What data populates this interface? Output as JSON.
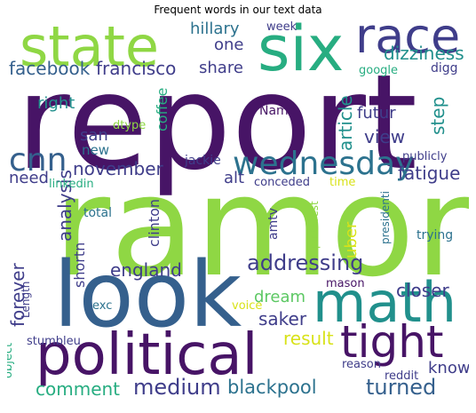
{
  "title": "Frequent words in our text data",
  "palette": {
    "dark_purple": "#471466",
    "indigo": "#3f3d8a",
    "blue": "#35608d",
    "teal_blue": "#2c728e",
    "teal": "#21908c",
    "green_teal": "#27ad81",
    "green": "#5cc863",
    "lime": "#8fd744",
    "yellow": "#d8e219"
  },
  "words": [
    {
      "id": "report",
      "text": "report",
      "color": "#471466"
    },
    {
      "id": "ramone",
      "text": "ramone",
      "color": "#8fd744"
    },
    {
      "id": "look",
      "text": "look",
      "color": "#35608d"
    },
    {
      "id": "political",
      "text": "political",
      "color": "#471466"
    },
    {
      "id": "state",
      "text": "state",
      "color": "#8fd744"
    },
    {
      "id": "six",
      "text": "six",
      "color": "#27ad81"
    },
    {
      "id": "race",
      "text": "race",
      "color": "#3f3d8a"
    },
    {
      "id": "math",
      "text": "math",
      "color": "#21908c"
    },
    {
      "id": "tight",
      "text": "tight",
      "color": "#471466"
    },
    {
      "id": "wednesday",
      "text": "wednesday",
      "color": "#2c728e"
    },
    {
      "id": "cnn",
      "text": "cnn",
      "color": "#35608d"
    },
    {
      "id": "addressing",
      "text": "addressing",
      "color": "#3f3d8a"
    },
    {
      "id": "medium",
      "text": "medium",
      "color": "#3f3d8a"
    },
    {
      "id": "blackpool",
      "text": "blackpool",
      "color": "#2c728e"
    },
    {
      "id": "turned",
      "text": "turned",
      "color": "#35608d"
    },
    {
      "id": "comment",
      "text": "comment",
      "color": "#27ad81"
    },
    {
      "id": "facebook",
      "text": "facebook",
      "color": "#35608d"
    },
    {
      "id": "francisco",
      "text": "francisco",
      "color": "#3f3d8a"
    },
    {
      "id": "november",
      "text": "november",
      "color": "#3f3d8a"
    },
    {
      "id": "england",
      "text": "england",
      "color": "#3f3d8a"
    },
    {
      "id": "analysis",
      "text": "analysis",
      "color": "#3f3d8a"
    },
    {
      "id": "forever",
      "text": "forever",
      "color": "#3f3d8a"
    },
    {
      "id": "saker",
      "text": "saker",
      "color": "#3f3d8a"
    },
    {
      "id": "closer",
      "text": "closer",
      "color": "#3f3d8a"
    },
    {
      "id": "result",
      "text": "result",
      "color": "#d8e219"
    },
    {
      "id": "dream",
      "text": "dream",
      "color": "#5cc863"
    },
    {
      "id": "view",
      "text": "view",
      "color": "#3f3d8a"
    },
    {
      "id": "futur",
      "text": "futur",
      "color": "#3f3d8a"
    },
    {
      "id": "step",
      "text": "step",
      "color": "#21908c"
    },
    {
      "id": "fatigue",
      "text": "fatigue",
      "color": "#3f3d8a"
    },
    {
      "id": "article",
      "text": "article",
      "color": "#21908c"
    },
    {
      "id": "dizziness",
      "text": "dizziness",
      "color": "#21908c"
    },
    {
      "id": "hillary",
      "text": "hillary",
      "color": "#2c728e"
    },
    {
      "id": "one",
      "text": "one",
      "color": "#3f3d8a"
    },
    {
      "id": "share",
      "text": "share",
      "color": "#3f3d8a"
    },
    {
      "id": "right",
      "text": "right",
      "color": "#21908c"
    },
    {
      "id": "san",
      "text": "san",
      "color": "#3f3d8a"
    },
    {
      "id": "new",
      "text": "new",
      "color": "#2c728e"
    },
    {
      "id": "need",
      "text": "need",
      "color": "#3f3d8a"
    },
    {
      "id": "coffee",
      "text": "coffee",
      "color": "#27ad81"
    },
    {
      "id": "know",
      "text": "know",
      "color": "#3f3d8a"
    },
    {
      "id": "week",
      "text": "week",
      "color": "#3f3d8a"
    },
    {
      "id": "google",
      "text": "google",
      "color": "#27ad81"
    },
    {
      "id": "digg",
      "text": "digg",
      "color": "#3f3d8a"
    },
    {
      "id": "Name",
      "text": "Name",
      "color": "#471466"
    },
    {
      "id": "dtype",
      "text": "dtype",
      "color": "#8fd744"
    },
    {
      "id": "jackie",
      "text": "jackie",
      "color": "#3f3d8a"
    },
    {
      "id": "alt",
      "text": "alt",
      "color": "#3f3d8a"
    },
    {
      "id": "conceded",
      "text": "conceded",
      "color": "#3f3d8a"
    },
    {
      "id": "time",
      "text": "time",
      "color": "#d8e219"
    },
    {
      "id": "publicly",
      "text": "publicly",
      "color": "#3f3d8a"
    },
    {
      "id": "linkedin",
      "text": "linkedin",
      "color": "#27ad81"
    },
    {
      "id": "clinton",
      "text": "clinton",
      "color": "#3f3d8a"
    },
    {
      "id": "shortn",
      "text": "shortn",
      "color": "#3f3d8a"
    },
    {
      "id": "total",
      "text": "total",
      "color": "#2c728e"
    },
    {
      "id": "amtv",
      "text": "amtv",
      "color": "#3f3d8a"
    },
    {
      "id": "uber",
      "text": "uber",
      "color": "#d8e219"
    },
    {
      "id": "pinterest",
      "text": "pinterest",
      "color": "#8fd744"
    },
    {
      "id": "presidenti",
      "text": "presidenti",
      "color": "#2c728e"
    },
    {
      "id": "trying",
      "text": "trying",
      "color": "#2c728e"
    },
    {
      "id": "Length",
      "text": "Length",
      "color": "#3f3d8a"
    },
    {
      "id": "exc",
      "text": "exc",
      "color": "#2c728e"
    },
    {
      "id": "voice",
      "text": "voice",
      "color": "#d8e219"
    },
    {
      "id": "mason",
      "text": "mason",
      "color": "#471466"
    },
    {
      "id": "reason",
      "text": "reason",
      "color": "#3f3d8a"
    },
    {
      "id": "reddit",
      "text": "reddit",
      "color": "#3f3d8a"
    },
    {
      "id": "stumbleu",
      "text": "stumbleu",
      "color": "#3f3d8a"
    },
    {
      "id": "object",
      "text": "object",
      "color": "#27ad81"
    }
  ]
}
